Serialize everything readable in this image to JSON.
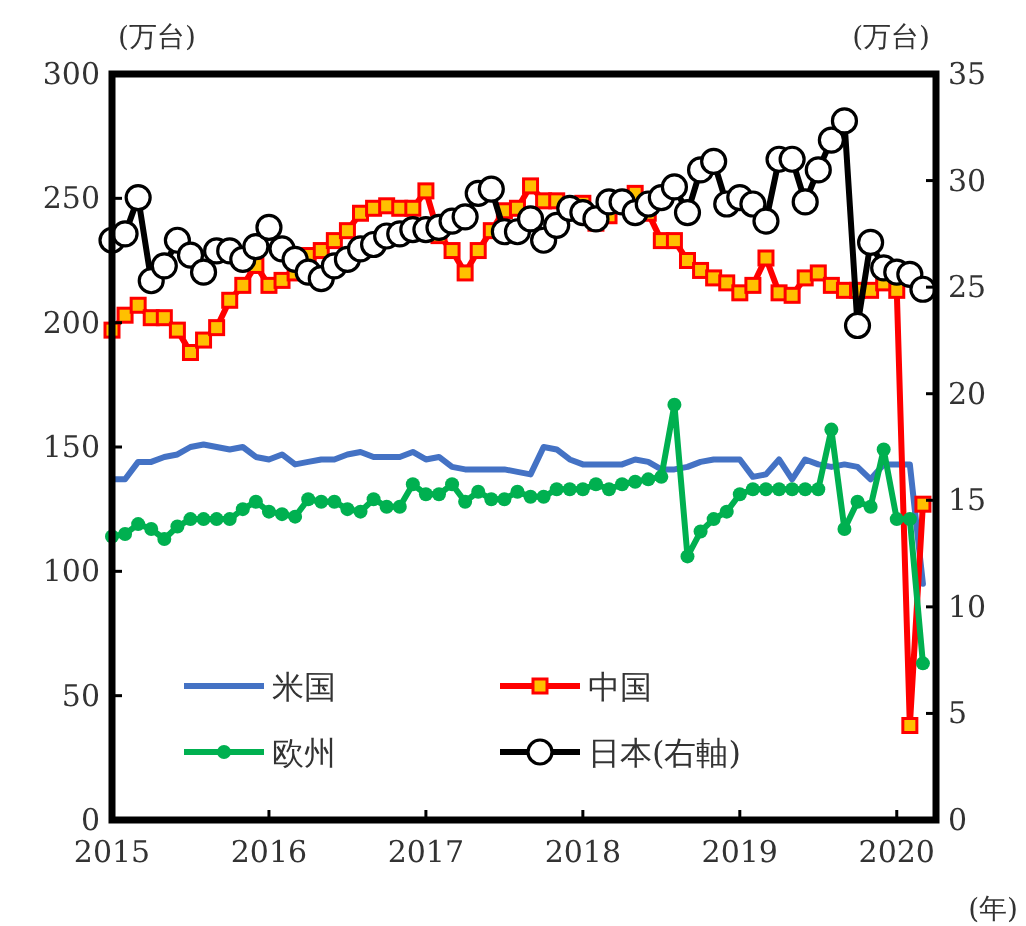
{
  "chart_data": {
    "type": "line",
    "xlabel": "(年)",
    "ylabel": "(万台)",
    "y2label": "(万台)",
    "x": [
      "2015-01",
      "2015-02",
      "2015-03",
      "2015-04",
      "2015-05",
      "2015-06",
      "2015-07",
      "2015-08",
      "2015-09",
      "2015-10",
      "2015-11",
      "2015-12",
      "2016-01",
      "2016-02",
      "2016-03",
      "2016-04",
      "2016-05",
      "2016-06",
      "2016-07",
      "2016-08",
      "2016-09",
      "2016-10",
      "2016-11",
      "2016-12",
      "2017-01",
      "2017-02",
      "2017-03",
      "2017-04",
      "2017-05",
      "2017-06",
      "2017-07",
      "2017-08",
      "2017-09",
      "2017-10",
      "2017-11",
      "2017-12",
      "2018-01",
      "2018-02",
      "2018-03",
      "2018-04",
      "2018-05",
      "2018-06",
      "2018-07",
      "2018-08",
      "2018-09",
      "2018-10",
      "2018-11",
      "2018-12",
      "2019-01",
      "2019-02",
      "2019-03",
      "2019-04",
      "2019-05",
      "2019-06",
      "2019-07",
      "2019-08",
      "2019-09",
      "2019-10",
      "2019-11",
      "2019-12",
      "2020-01",
      "2020-02",
      "2020-03"
    ],
    "xlim": [
      "2015-01",
      "2020-04"
    ],
    "xticks": [
      {
        "value": "2015-01",
        "label": "2015"
      },
      {
        "value": "2016-01",
        "label": "2016"
      },
      {
        "value": "2017-01",
        "label": "2017"
      },
      {
        "value": "2018-01",
        "label": "2018"
      },
      {
        "value": "2019-01",
        "label": "2019"
      },
      {
        "value": "2020-01",
        "label": "2020"
      }
    ],
    "ylim": [
      0,
      300
    ],
    "yticks": [
      0,
      50,
      100,
      150,
      200,
      250,
      300
    ],
    "y2lim": [
      0,
      35
    ],
    "y2ticks": [
      0,
      5,
      10,
      15,
      20,
      25,
      30,
      35
    ],
    "grid": false,
    "legend": "bottom",
    "series": [
      {
        "name": "米国",
        "color": "#4472c4",
        "marker": "none",
        "values": [
          137,
          137,
          144,
          144,
          146,
          147,
          150,
          151,
          150,
          149,
          150,
          146,
          145,
          147,
          143,
          144,
          145,
          145,
          147,
          148,
          146,
          146,
          146,
          148,
          145,
          146,
          142,
          141,
          141,
          141,
          141,
          140,
          139,
          150,
          149,
          145,
          143,
          143,
          143,
          143,
          145,
          144,
          141,
          141,
          142,
          144,
          145,
          145,
          145,
          138,
          139,
          145,
          137,
          145,
          143,
          142,
          143,
          142,
          137,
          143,
          143,
          143,
          95
        ]
      },
      {
        "name": "中国",
        "color": "#ff0000",
        "marker": "square",
        "values": [
          197,
          203,
          207,
          202,
          202,
          197,
          188,
          193,
          198,
          209,
          215,
          223,
          215,
          217,
          220,
          227,
          229,
          233,
          237,
          244,
          246,
          247,
          246,
          246,
          253,
          235,
          229,
          220,
          229,
          237,
          245,
          246,
          255,
          249,
          249,
          247,
          248,
          240,
          243,
          248,
          252,
          244,
          233,
          233,
          225,
          221,
          218,
          216,
          212,
          215,
          226,
          212,
          211,
          218,
          220,
          215,
          213,
          213,
          213,
          216,
          213,
          38,
          127
        ]
      },
      {
        "name": "欧州",
        "color": "#00b050",
        "marker": "circle",
        "values": [
          114,
          115,
          119,
          117,
          113,
          118,
          121,
          121,
          121,
          121,
          125,
          128,
          124,
          123,
          122,
          129,
          128,
          128,
          125,
          124,
          129,
          126,
          126,
          135,
          131,
          131,
          135,
          128,
          132,
          129,
          129,
          132,
          130,
          130,
          133,
          133,
          133,
          135,
          133,
          135,
          136,
          137,
          138,
          167,
          106,
          116,
          121,
          124,
          131,
          133,
          133,
          133,
          133,
          133,
          133,
          157,
          117,
          128,
          126,
          149,
          121,
          121,
          63
        ]
      },
      {
        "name": "日本(右軸)",
        "color": "#000000",
        "marker": "circle",
        "axis": "y2",
        "values": [
          27.2,
          27.5,
          29.2,
          25.3,
          26.0,
          27.2,
          26.5,
          25.7,
          26.7,
          26.7,
          26.3,
          26.9,
          27.8,
          26.8,
          26.3,
          25.7,
          25.4,
          26.0,
          26.3,
          26.8,
          27.0,
          27.4,
          27.5,
          27.7,
          27.7,
          27.8,
          28.1,
          28.3,
          29.4,
          29.6,
          27.6,
          27.6,
          28.2,
          27.2,
          27.9,
          28.7,
          28.5,
          28.2,
          29.0,
          29.0,
          28.5,
          28.9,
          29.2,
          29.7,
          28.5,
          30.5,
          30.9,
          28.9,
          29.2,
          28.9,
          28.1,
          31.0,
          31.0,
          29.0,
          30.5,
          31.9,
          32.8,
          23.2,
          27.1,
          25.9,
          25.7,
          25.6,
          24.9
        ]
      }
    ]
  }
}
